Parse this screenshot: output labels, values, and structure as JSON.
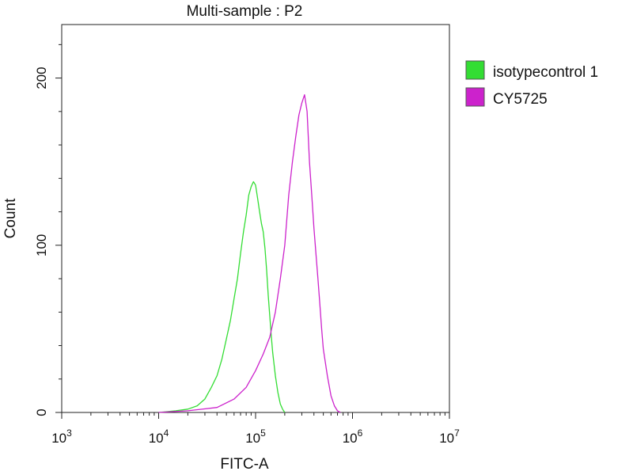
{
  "chart_data": {
    "type": "line",
    "title": "Multi-sample : P2",
    "xlabel": "FITC-A",
    "ylabel": "Count",
    "x_scale": "log",
    "xlim": [
      1000,
      10000000
    ],
    "ylim": [
      0,
      232
    ],
    "x_ticks": [
      {
        "value": 1000,
        "base": "10",
        "exp": "3"
      },
      {
        "value": 10000,
        "base": "10",
        "exp": "4"
      },
      {
        "value": 100000,
        "base": "10",
        "exp": "5"
      },
      {
        "value": 1000000,
        "base": "10",
        "exp": "6"
      },
      {
        "value": 10000000,
        "base": "10",
        "exp": "7"
      }
    ],
    "y_ticks": [
      {
        "value": 0,
        "label": "0"
      },
      {
        "value": 100,
        "label": "100"
      },
      {
        "value": 200,
        "label": "200"
      }
    ],
    "grid": false,
    "legend": "right",
    "series": [
      {
        "name": "isotypecontrol 1",
        "color": "#33dd33",
        "x": [
          10000,
          15000,
          20000,
          25000,
          30000,
          35000,
          40000,
          45000,
          50000,
          55000,
          60000,
          65000,
          70000,
          75000,
          80000,
          85000,
          90000,
          95000,
          100000,
          105000,
          110000,
          115000,
          120000,
          125000,
          130000,
          135000,
          140000,
          145000,
          150000,
          160000,
          170000,
          180000,
          190000,
          200000
        ],
        "y": [
          0,
          1,
          2,
          4,
          8,
          15,
          22,
          32,
          44,
          55,
          68,
          80,
          95,
          108,
          118,
          130,
          135,
          138,
          136,
          128,
          120,
          113,
          108,
          98,
          85,
          70,
          58,
          46,
          36,
          22,
          12,
          5,
          2,
          0
        ]
      },
      {
        "name": "CY5725",
        "color": "#cc22cc",
        "x": [
          10000,
          20000,
          40000,
          60000,
          80000,
          100000,
          120000,
          140000,
          160000,
          180000,
          200000,
          220000,
          240000,
          260000,
          280000,
          300000,
          320000,
          340000,
          360000,
          380000,
          400000,
          420000,
          440000,
          460000,
          480000,
          500000,
          550000,
          600000,
          650000,
          700000,
          750000
        ],
        "y": [
          0,
          1,
          3,
          8,
          15,
          25,
          35,
          45,
          60,
          80,
          100,
          130,
          150,
          165,
          178,
          185,
          190,
          180,
          150,
          130,
          110,
          95,
          80,
          65,
          50,
          38,
          22,
          10,
          4,
          1,
          0
        ]
      }
    ]
  }
}
